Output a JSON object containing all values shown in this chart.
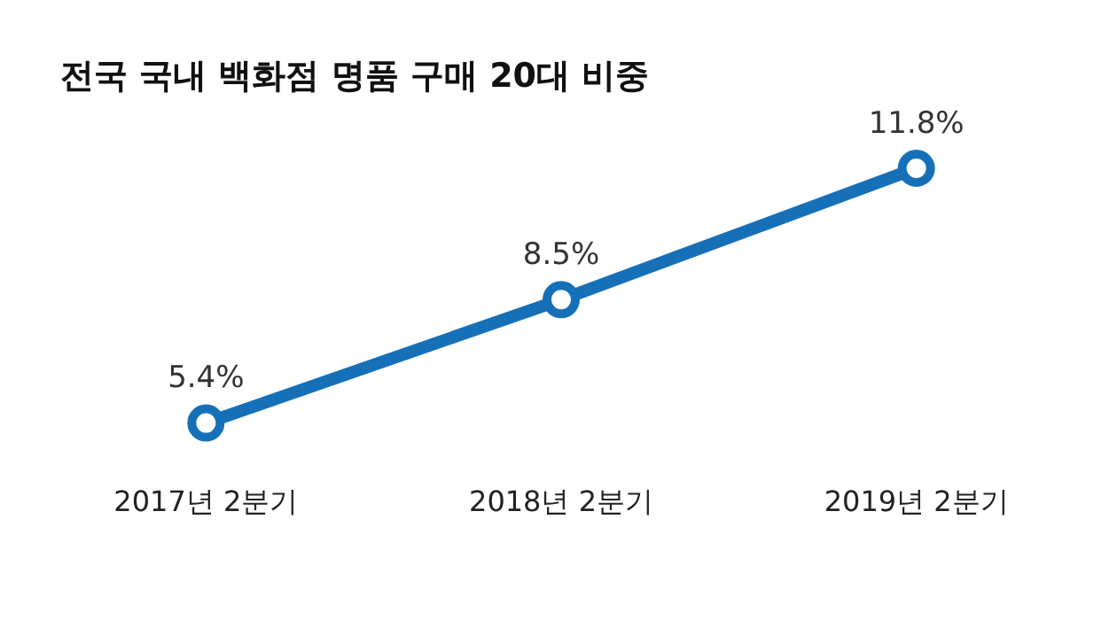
{
  "chart_data": {
    "type": "line",
    "title": "전국 국내 백화점 명품 구매 20대 비중",
    "categories": [
      "2017년 2분기",
      "2018년 2분기",
      "2019년 2분기"
    ],
    "values": [
      5.4,
      8.5,
      11.8
    ],
    "value_labels": [
      "5.4%",
      "8.5%",
      "11.8%"
    ],
    "color": "#1670b8",
    "marker": "circle",
    "grid": false,
    "legend": false
  }
}
